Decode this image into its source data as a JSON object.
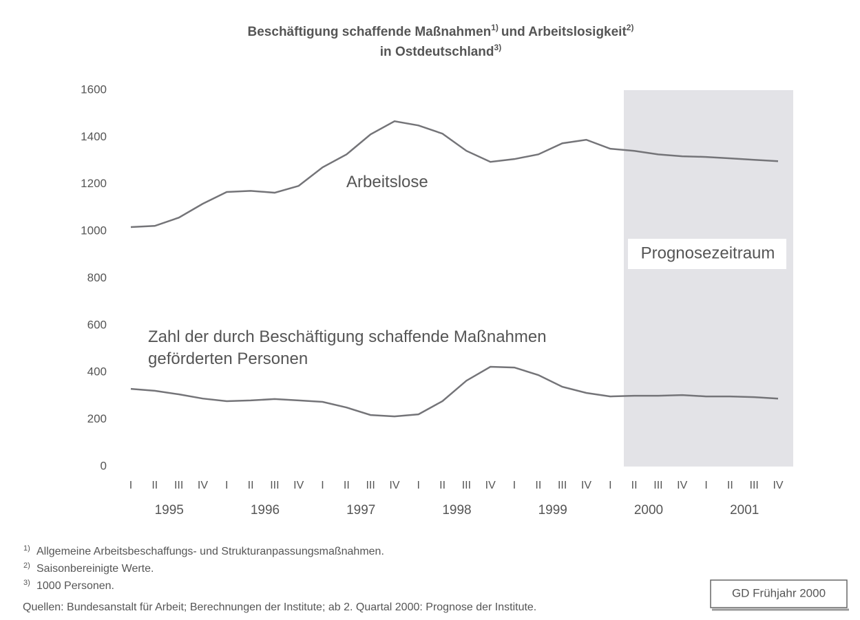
{
  "chart_data": {
    "type": "line",
    "title": {
      "line1": "Beschäftigung schaffende Maßnahmen",
      "sup1": "1)",
      "mid": "und Arbeitslosigkeit",
      "sup2": "2)",
      "line2": "in Ostdeutschland",
      "sup3": "3)"
    },
    "categories": [
      "I",
      "II",
      "III",
      "IV",
      "I",
      "II",
      "III",
      "IV",
      "I",
      "II",
      "III",
      "IV",
      "I",
      "II",
      "III",
      "IV",
      "I",
      "II",
      "III",
      "IV",
      "I",
      "II",
      "III",
      "IV",
      "I",
      "II",
      "III",
      "IV"
    ],
    "years": [
      "1995",
      "1996",
      "1997",
      "1998",
      "1999",
      "2000",
      "2001"
    ],
    "series": [
      {
        "name": "Arbeitslose",
        "color": "#747478",
        "values": [
          1018,
          1023,
          1058,
          1117,
          1167,
          1172,
          1164,
          1193,
          1272,
          1327,
          1412,
          1468,
          1450,
          1415,
          1342,
          1295,
          1307,
          1327,
          1374,
          1389,
          1351,
          1342,
          1327,
          1319,
          1316,
          1310,
          1304,
          1298
        ]
      },
      {
        "name": "Zahl der durch Beschäftigung schaffende Maßnahmen geförderten Personen",
        "color": "#747478",
        "values": [
          330,
          322,
          307,
          289,
          278,
          281,
          287,
          281,
          275,
          251,
          219,
          213,
          222,
          278,
          365,
          424,
          421,
          389,
          339,
          313,
          298,
          301,
          301,
          304,
          298,
          298,
          295,
          289
        ]
      }
    ],
    "annotation": "Prognosezeitraum",
    "ylim": [
      0,
      1600
    ],
    "yticks": [
      0,
      200,
      400,
      600,
      800,
      1000,
      1200,
      1400,
      1600
    ],
    "grid": false,
    "footnotes": [
      {
        "mark": "1)",
        "text": "Allgemeine Arbeitsbeschaffungs- und Strukturanpassungsmaßnahmen."
      },
      {
        "mark": "2)",
        "text": "Saisonbereinigte Werte."
      },
      {
        "mark": "3)",
        "text": "1000 Personen."
      }
    ],
    "source": "Quellen: Bundesanstalt für Arbeit; Berechnungen der Institute; ab 2. Quartal 2000: Prognose der Institute.",
    "badge": "GD Frühjahr 2000"
  }
}
